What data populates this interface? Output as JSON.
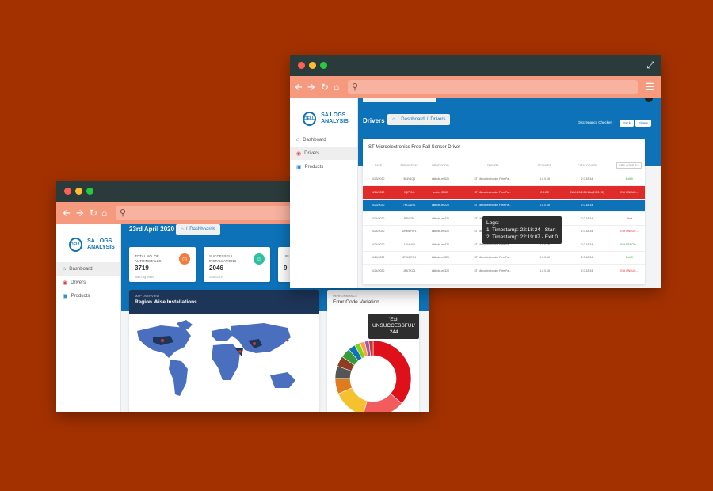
{
  "back_window": {
    "sidebar": {
      "logo_badge": "DELL",
      "logo_text": "SA LOGS ANALYSIS",
      "items": [
        {
          "label": "Dashboard",
          "icon": "home-icon",
          "active": true
        },
        {
          "label": "Drivers",
          "icon": "car-icon",
          "active": false
        },
        {
          "label": "Products",
          "icon": "monitor-icon",
          "active": false
        }
      ]
    },
    "header": {
      "date": "23rd April 2020",
      "breadcrumb": [
        "Dashboards"
      ]
    },
    "stats": [
      {
        "label": "TOTAL NO. OF AUTOINSTALLS",
        "value": "3719",
        "foot": "Start Log match",
        "icon": "clock-icon",
        "color": "#f57c3a"
      },
      {
        "label": "SUCCESSFUL INSTALLATIONS",
        "value": "2046",
        "foot": "2046/3719",
        "icon": "smile-icon",
        "color": "#2ec0a2"
      },
      {
        "label": "UN",
        "value": "9",
        "foot": "",
        "icon": "",
        "color": "#e03030"
      }
    ],
    "map_card": {
      "eyebrow": "MAP OVERVIEW",
      "title": "Region Wise Installations"
    },
    "donut_card": {
      "eyebrow": "PERFORMANCE",
      "title": "Error Code Variation"
    },
    "donut_tooltip": {
      "line1": "'Exit",
      "line2": "UNSUCCESSFUL'",
      "line3": "244"
    },
    "donut_slices": [
      {
        "value": 244,
        "color": "#e0101a"
      },
      {
        "value": 120,
        "color": "#f25c5c"
      },
      {
        "value": 95,
        "color": "#f5c12e"
      },
      {
        "value": 45,
        "color": "#e07b1e"
      },
      {
        "value": 35,
        "color": "#555555"
      },
      {
        "value": 30,
        "color": "#8e3d22"
      },
      {
        "value": 28,
        "color": "#3a9a3a"
      },
      {
        "value": 20,
        "color": "#0d72b8"
      },
      {
        "value": 16,
        "color": "#7ed321"
      },
      {
        "value": 14,
        "color": "#ff9f40"
      },
      {
        "value": 12,
        "color": "#9b59b6"
      },
      {
        "value": 12,
        "color": "#c0392b"
      }
    ]
  },
  "front_window": {
    "sidebar": {
      "logo_badge": "DELL",
      "logo_text": "SA LOGS ANALYSIS",
      "items": [
        {
          "label": "Dashboard",
          "icon": "home-icon",
          "active": false
        },
        {
          "label": "Drivers",
          "icon": "car-icon",
          "active": true
        },
        {
          "label": "Products",
          "icon": "monitor-icon",
          "active": false
        }
      ]
    },
    "header": {
      "title": "Drivers",
      "breadcrumb": [
        "Dashboard",
        "Drivers"
      ],
      "discrepancy_label": "Discrepancy Checker",
      "back_button": "Back",
      "filters_button": "Filters"
    },
    "panel_title": "ST Microelectronics Free Fall Sensor Driver",
    "table": {
      "columns": [
        "Date",
        "Servicetag",
        "ProductID",
        "Driver",
        "Scanver",
        "Catalogver",
        "Err Code All"
      ],
      "rows": [
        {
          "date": "4/23/2020",
          "tag": "5L4V1Q1",
          "product": "latitude-e6520",
          "driver": "ST Microelectronics Free Fa...",
          "scan": "1.0.0.16",
          "catalog": "2.0.18.34",
          "err": "Exit 0",
          "type": "normal",
          "err_class": "ok"
        },
        {
          "date": "4/24/2020",
          "tag": "9QPVN1",
          "product": "vostro 3560",
          "driver": "ST Microelectronics Free Fa...",
          "scan": "2.3.2.2",
          "catalog": "INinf:2.3.2.2:INfile(2.2.2.13)",
          "err": "Exit UNSUC...",
          "type": "err",
          "err_class": ""
        },
        {
          "date": "4/23/2020",
          "tag": "7KG2DS1",
          "product": "latitude-e6220",
          "driver": "ST Microelectronics Free Fa...",
          "scan": "1.0.0.16",
          "catalog": "2.0.18.34",
          "err": "",
          "type": "sel",
          "err_class": ""
        },
        {
          "date": "4/24/2020",
          "tag": "BTW781",
          "product": "latitude-e6420",
          "driver": "ST Microelectronics Free Fa...",
          "scan": "1.0.0.16",
          "catalog": "2.0.18.34",
          "err": "Start",
          "type": "normal",
          "err_class": "bad"
        },
        {
          "date": "4/24/2020",
          "tag": "DKMWYP1",
          "product": "latitude-e6420",
          "driver": "ST Microelectronics Free Fa...",
          "scan": "1.0.0.16",
          "catalog": "2.0.18.34",
          "err": "Exit UNSUC...",
          "type": "normal",
          "err_class": "bad"
        },
        {
          "date": "4/24/2020",
          "tag": "JJY4MY1",
          "product": "latitude-e6420",
          "driver": "ST Microelectronics Free Fa...",
          "scan": "1.0.0.16",
          "catalog": "2.0.18.34",
          "err": "Exit REBOO...",
          "type": "normal",
          "err_class": "ok"
        },
        {
          "date": "4/24/2020",
          "tag": "6PMQRN1",
          "product": "latitude-e6320",
          "driver": "ST Microelectronics Free Fa...",
          "scan": "1.0.0.16",
          "catalog": "2.0.18.34",
          "err": "Exit 0",
          "type": "normal",
          "err_class": "ok"
        },
        {
          "date": "4/24/2020",
          "tag": "JMLTKQ1",
          "product": "latitude-e6320",
          "driver": "ST Microelectronics Free Fa...",
          "scan": "1.0.0.16",
          "catalog": "2.0.18.34",
          "err": "Exit UNSUC...",
          "type": "normal",
          "err_class": "bad"
        }
      ]
    },
    "logs_tooltip": {
      "title": "Logs:",
      "line1": "1. Timestamp: 22:18:24 - Start",
      "line2": "2. Timestamp: 22:19:07 - Exit 0"
    }
  }
}
